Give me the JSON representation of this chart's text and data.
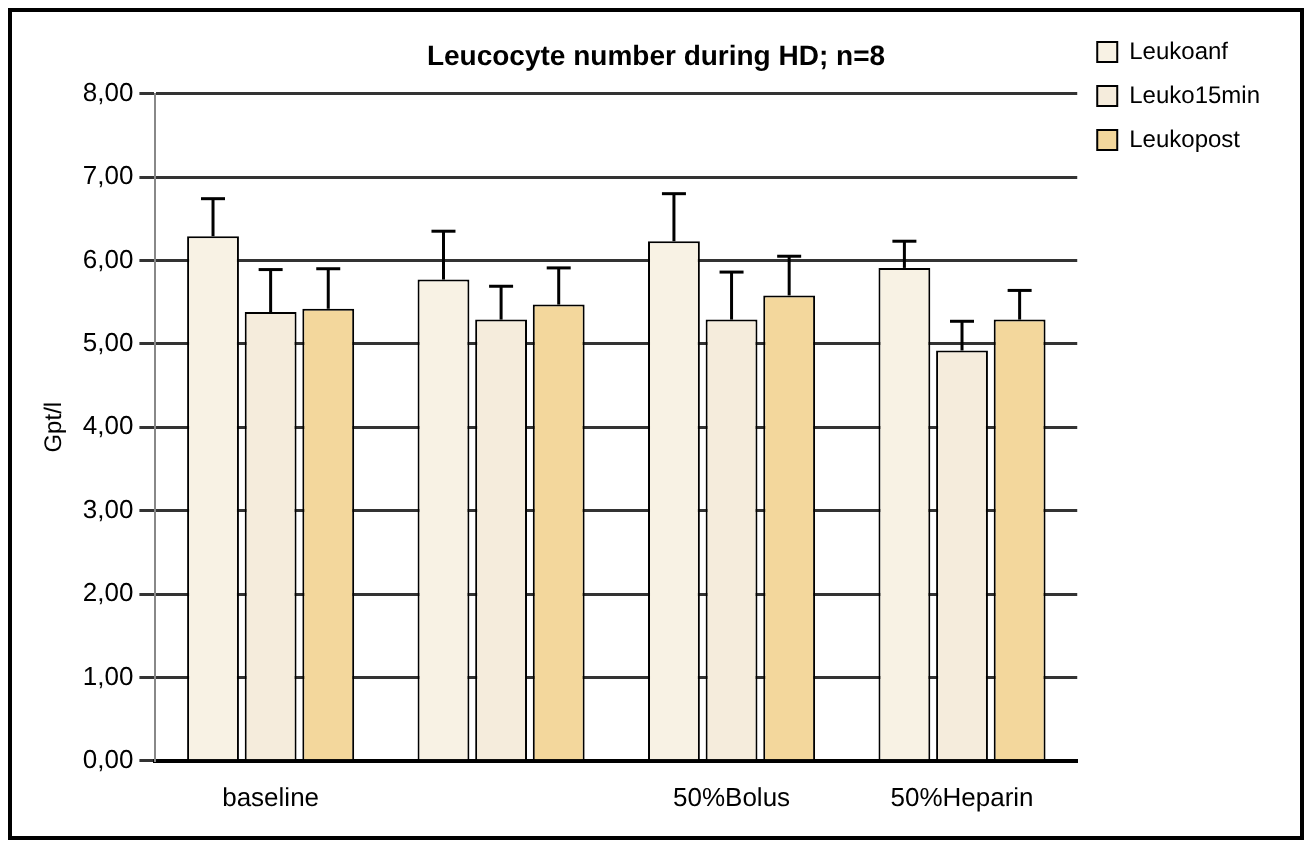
{
  "chart_data": {
    "type": "bar",
    "title": "Leucocyte number during HD; n=8",
    "ylabel": "Gpt/l",
    "categories": [
      "baseline",
      null,
      "50%Bolus",
      "50%Heparin"
    ],
    "series": [
      {
        "name": "Leukoanf",
        "color": "#f8f2e4",
        "values": [
          6.29,
          5.77,
          6.23,
          5.91
        ],
        "errors": [
          [
            6.29,
            6.74
          ],
          [
            5.77,
            6.35
          ],
          [
            6.23,
            6.8
          ],
          [
            5.91,
            6.23
          ]
        ]
      },
      {
        "name": "Leuko15min",
        "color": "#f5ecdc",
        "values": [
          5.38,
          5.29,
          5.29,
          4.92
        ],
        "errors": [
          [
            5.38,
            5.89
          ],
          [
            5.29,
            5.69
          ],
          [
            5.29,
            5.86
          ],
          [
            4.92,
            5.27
          ]
        ]
      },
      {
        "name": "Leukopost",
        "color": "#f3d79c",
        "values": [
          5.42,
          5.47,
          5.58,
          5.29
        ],
        "errors": [
          [
            5.42,
            5.9
          ],
          [
            5.47,
            5.91
          ],
          [
            5.58,
            6.05
          ],
          [
            5.29,
            5.64
          ]
        ]
      }
    ],
    "ylim": [
      0,
      8
    ],
    "yticks": [
      {
        "value": 0,
        "label": "0,00"
      },
      {
        "value": 1,
        "label": "1,00"
      },
      {
        "value": 2,
        "label": "2,00"
      },
      {
        "value": 3,
        "label": "3,00"
      },
      {
        "value": 4,
        "label": "4,00"
      },
      {
        "value": 5,
        "label": "5,00"
      },
      {
        "value": 6,
        "label": "6,00"
      },
      {
        "value": 7,
        "label": "7,00"
      },
      {
        "value": 8,
        "label": "8,00"
      }
    ],
    "grid": "y",
    "legend": "top right"
  }
}
